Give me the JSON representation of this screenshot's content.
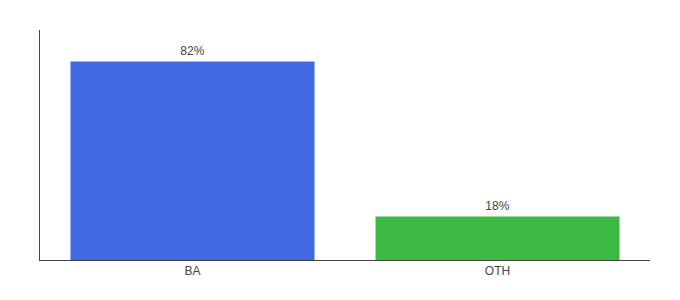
{
  "chart_data": {
    "type": "bar",
    "categories": [
      "BA",
      "OTH"
    ],
    "values": [
      82,
      18
    ],
    "value_labels": [
      "82%",
      "18%"
    ],
    "colors": [
      "#4169E1",
      "#3CB943"
    ],
    "data_labels": true,
    "ylim": [
      0,
      95
    ],
    "grid": false,
    "tick_labels": "x"
  }
}
